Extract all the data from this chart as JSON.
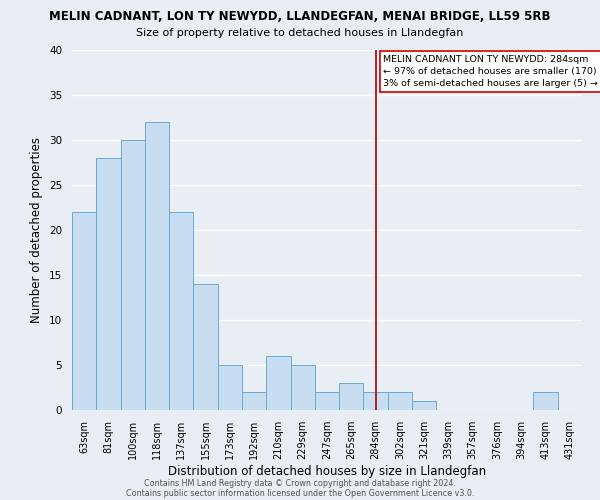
{
  "title1": "MELIN CADNANT, LON TY NEWYDD, LLANDEGFAN, MENAI BRIDGE, LL59 5RB",
  "title2": "Size of property relative to detached houses in Llandegfan",
  "xlabel": "Distribution of detached houses by size in Llandegfan",
  "ylabel": "Number of detached properties",
  "bar_labels": [
    "63sqm",
    "81sqm",
    "100sqm",
    "118sqm",
    "137sqm",
    "155sqm",
    "173sqm",
    "192sqm",
    "210sqm",
    "229sqm",
    "247sqm",
    "265sqm",
    "284sqm",
    "302sqm",
    "321sqm",
    "339sqm",
    "357sqm",
    "376sqm",
    "394sqm",
    "413sqm",
    "431sqm"
  ],
  "bar_values": [
    22,
    28,
    30,
    32,
    22,
    14,
    5,
    2,
    6,
    5,
    2,
    3,
    2,
    2,
    1,
    0,
    0,
    0,
    0,
    2,
    0
  ],
  "bar_color": "#c8ddf0",
  "bar_edge_color": "#6aaad4",
  "vline_index": 12,
  "vline_color": "#aa0000",
  "annotation_title": "MELIN CADNANT LON TY NEWYDD: 284sqm",
  "annotation_line1": "← 97% of detached houses are smaller (170)",
  "annotation_line2": "3% of semi-detached houses are larger (5) →",
  "annotation_box_facecolor": "#ffffff",
  "annotation_box_edgecolor": "#cc0000",
  "ylim": [
    0,
    40
  ],
  "yticks": [
    0,
    5,
    10,
    15,
    20,
    25,
    30,
    35,
    40
  ],
  "figure_bg": "#e8eef4",
  "axes_bg": "#e8eef4",
  "grid_color": "#ffffff",
  "footer1": "Contains HM Land Registry data © Crown copyright and database right 2024.",
  "footer2": "Contains public sector information licensed under the Open Government Licence v3.0."
}
